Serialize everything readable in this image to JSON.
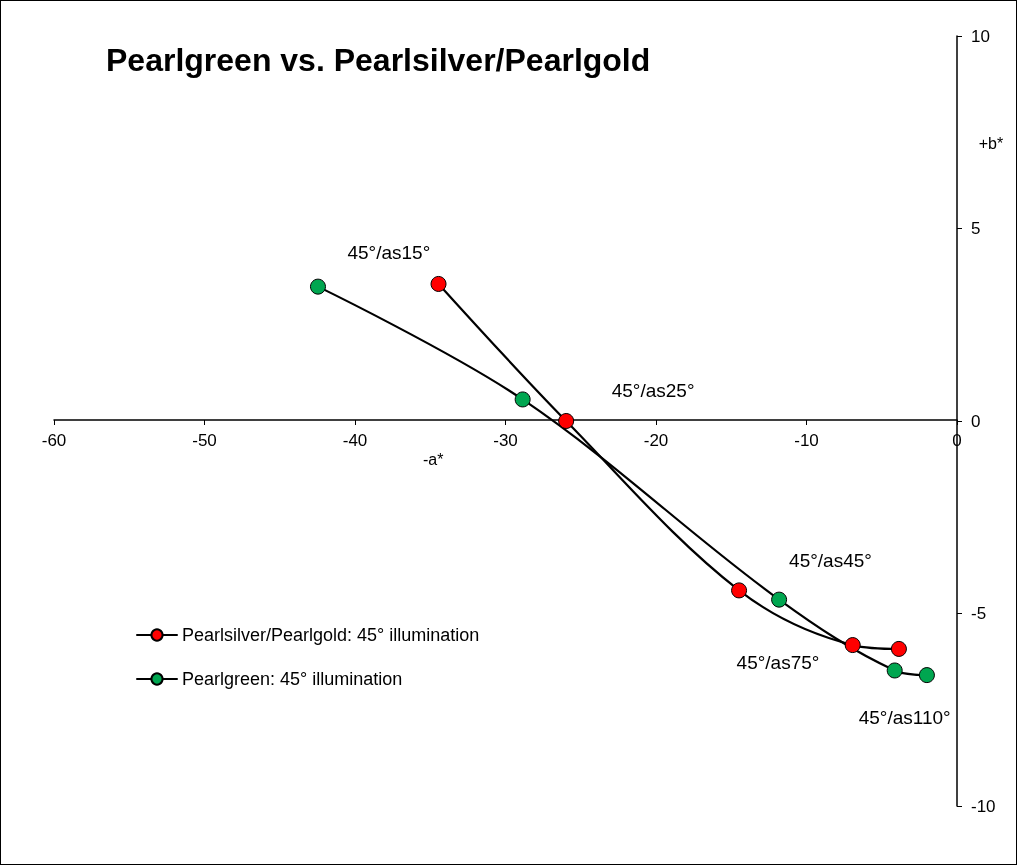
{
  "chart_data": {
    "type": "line",
    "title": "Pearlgreen vs. Pearlsilver/Pearlgold",
    "xlabel": "-a*",
    "ylabel": "+b*",
    "series": [
      {
        "name": "Pearlsilver/Pearlgold: 45° illumination",
        "color": "#ff0000",
        "x": [
          -34.45,
          -25.97,
          -14.48,
          -6.93,
          -3.86
        ],
        "values": [
          3.56,
          0,
          -4.4,
          -5.82,
          -5.92
        ]
      },
      {
        "name": "Pearlgreen: 45° illumination",
        "color": "#00a650",
        "x": [
          -42.46,
          -28.86,
          -11.82,
          -4.14,
          -2.0
        ],
        "values": [
          3.49,
          0.56,
          -4.64,
          -6.48,
          -6.6
        ]
      }
    ],
    "annotations": [
      "45°/as15°",
      "45°/as25°",
      "45°/as45°",
      "45°/as75°",
      "45°/as110°"
    ],
    "xlim": [
      -60,
      0
    ],
    "xticks": [
      -60,
      -50,
      -40,
      -30,
      -20,
      -10,
      0
    ],
    "ylim": [
      -10,
      10
    ],
    "yticks": [
      -10,
      -5,
      0,
      5,
      10
    ],
    "legend": "bottom left",
    "marker": "circle",
    "line_style": "solid"
  }
}
